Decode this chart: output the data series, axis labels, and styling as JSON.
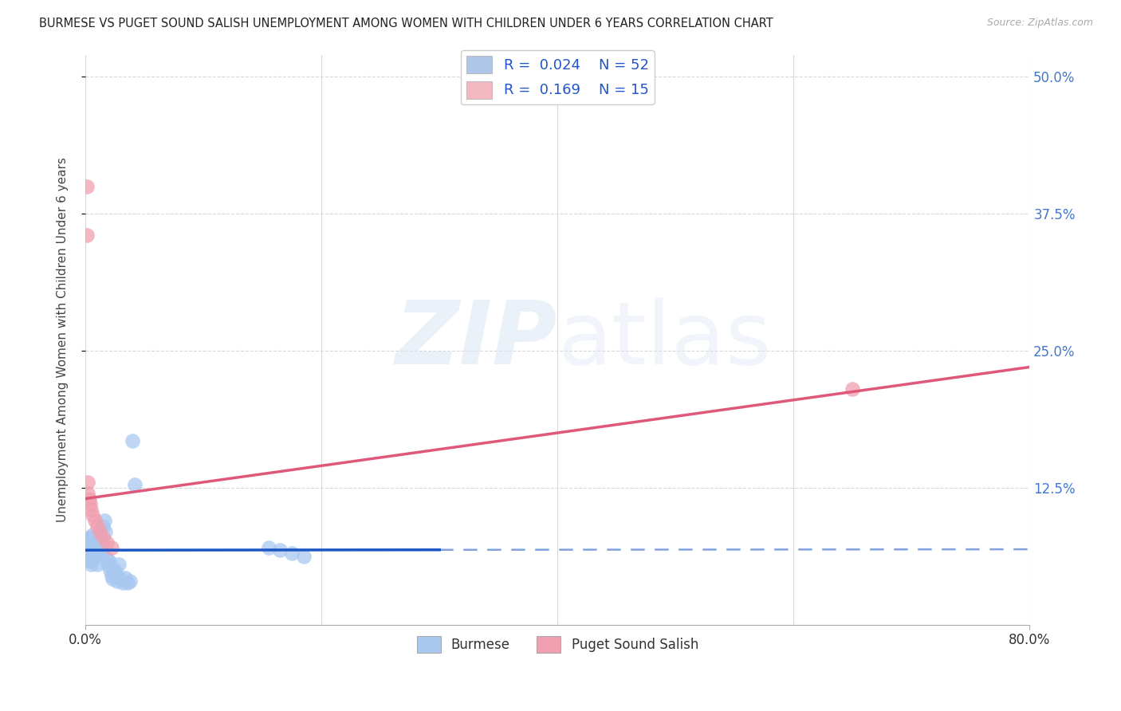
{
  "title": "BURMESE VS PUGET SOUND SALISH UNEMPLOYMENT AMONG WOMEN WITH CHILDREN UNDER 6 YEARS CORRELATION CHART",
  "source": "Source: ZipAtlas.com",
  "ylabel": "Unemployment Among Women with Children Under 6 years",
  "legend_entries": [
    {
      "label": "Burmese",
      "R": "0.024",
      "N": "52",
      "color": "#aec6e8"
    },
    {
      "label": "Puget Sound Salish",
      "R": "0.169",
      "N": "15",
      "color": "#f4b8c1"
    }
  ],
  "burmese_x": [
    0.001,
    0.001,
    0.002,
    0.002,
    0.002,
    0.003,
    0.003,
    0.003,
    0.004,
    0.004,
    0.005,
    0.005,
    0.006,
    0.006,
    0.007,
    0.007,
    0.008,
    0.008,
    0.009,
    0.009,
    0.01,
    0.01,
    0.011,
    0.012,
    0.013,
    0.013,
    0.014,
    0.015,
    0.016,
    0.017,
    0.018,
    0.019,
    0.02,
    0.021,
    0.022,
    0.023,
    0.024,
    0.025,
    0.026,
    0.027,
    0.028,
    0.03,
    0.032,
    0.034,
    0.036,
    0.038,
    0.04,
    0.042,
    0.155,
    0.165,
    0.175,
    0.185
  ],
  "burmese_y": [
    0.065,
    0.072,
    0.06,
    0.068,
    0.075,
    0.058,
    0.07,
    0.08,
    0.062,
    0.078,
    0.055,
    0.068,
    0.072,
    0.082,
    0.06,
    0.075,
    0.065,
    0.07,
    0.068,
    0.078,
    0.055,
    0.072,
    0.08,
    0.085,
    0.07,
    0.078,
    0.065,
    0.09,
    0.095,
    0.085,
    0.06,
    0.055,
    0.058,
    0.05,
    0.045,
    0.042,
    0.048,
    0.05,
    0.045,
    0.04,
    0.055,
    0.042,
    0.038,
    0.043,
    0.038,
    0.04,
    0.168,
    0.128,
    0.07,
    0.068,
    0.065,
    0.062
  ],
  "salish_x": [
    0.001,
    0.001,
    0.002,
    0.002,
    0.003,
    0.004,
    0.005,
    0.006,
    0.008,
    0.01,
    0.012,
    0.015,
    0.018,
    0.022,
    0.65
  ],
  "salish_y": [
    0.4,
    0.355,
    0.13,
    0.12,
    0.115,
    0.11,
    0.105,
    0.1,
    0.095,
    0.09,
    0.085,
    0.08,
    0.075,
    0.07,
    0.215
  ],
  "burmese_trend_x": [
    0.0,
    0.3,
    0.8
  ],
  "burmese_trend_y_slope": 0.001,
  "burmese_trend_y_intercept": 0.068,
  "salish_trend_x_start": 0.0,
  "salish_trend_x_end": 0.8,
  "salish_trend_y_start": 0.115,
  "salish_trend_y_end": 0.235,
  "burmese_trend_solid_end": 0.3,
  "burmese_trend_color": "#1a56c4",
  "salish_trend_color": "#e05878",
  "scatter_blue": "#a8c8f0",
  "scatter_pink": "#f0a0b0",
  "background_color": "#ffffff",
  "grid_color": "#d8d8d8",
  "xlim": [
    0.0,
    0.8
  ],
  "ylim": [
    0.0,
    0.52
  ],
  "figsize": [
    14.06,
    8.92
  ],
  "dpi": 100
}
